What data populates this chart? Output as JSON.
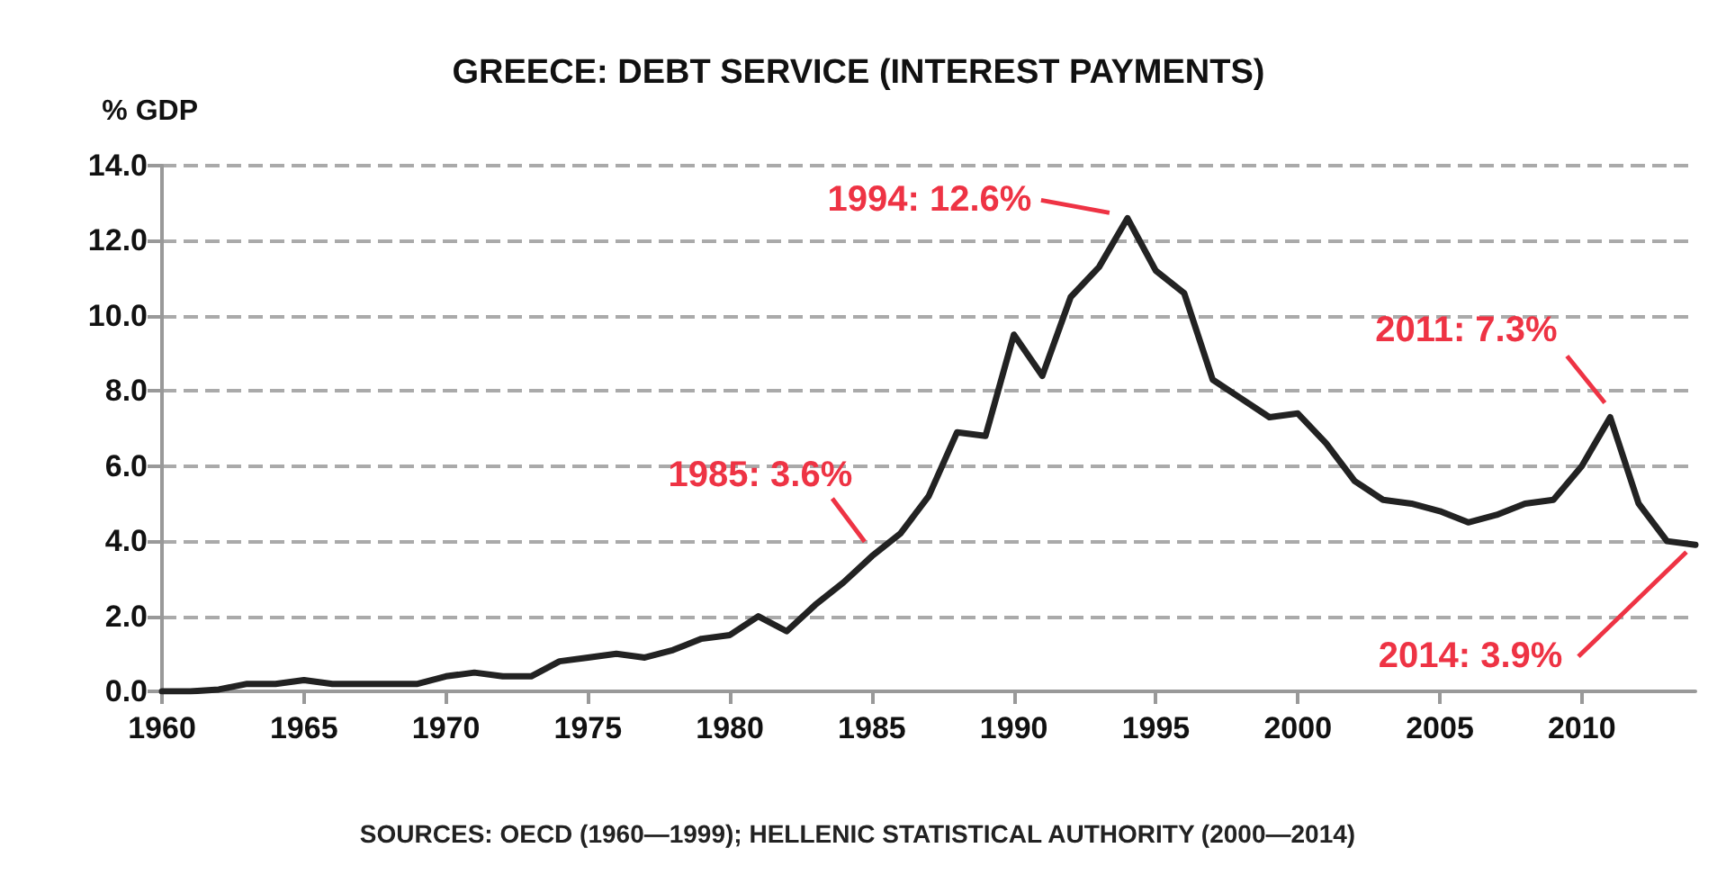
{
  "chart_data": {
    "type": "line",
    "title": "GREECE: DEBT SERVICE (INTEREST PAYMENTS)",
    "ylabel": "% GDP",
    "x": [
      1960,
      1961,
      1962,
      1963,
      1964,
      1965,
      1966,
      1967,
      1968,
      1969,
      1970,
      1971,
      1972,
      1973,
      1974,
      1975,
      1976,
      1977,
      1978,
      1979,
      1980,
      1981,
      1982,
      1983,
      1984,
      1985,
      1986,
      1987,
      1988,
      1989,
      1990,
      1991,
      1992,
      1993,
      1994,
      1995,
      1996,
      1997,
      1998,
      1999,
      2000,
      2001,
      2002,
      2003,
      2004,
      2005,
      2006,
      2007,
      2008,
      2009,
      2010,
      2011,
      2012,
      2013,
      2014
    ],
    "series": [
      {
        "color": "#222222",
        "values": [
          0,
          0,
          0.05,
          0.2,
          0.2,
          0.3,
          0.2,
          0.2,
          0.2,
          0.2,
          0.4,
          0.5,
          0.4,
          0.4,
          0.8,
          0.9,
          1.0,
          0.9,
          1.1,
          1.4,
          1.5,
          2.0,
          1.6,
          2.3,
          2.9,
          3.6,
          4.2,
          5.2,
          6.9,
          6.8,
          9.5,
          8.4,
          10.5,
          11.3,
          12.6,
          11.2,
          10.6,
          8.3,
          7.8,
          7.3,
          7.4,
          6.6,
          5.6,
          5.1,
          5.0,
          4.8,
          4.5,
          4.7,
          5.0,
          5.1,
          6.0,
          7.3,
          5.0,
          4.0,
          3.9
        ]
      }
    ],
    "xlim": [
      1960,
      2014
    ],
    "xticks": [
      1960,
      1965,
      1970,
      1975,
      1980,
      1985,
      1990,
      1995,
      2000,
      2005,
      2010
    ],
    "ylim": [
      0,
      14
    ],
    "yticks": [
      {
        "value": 0,
        "label": "0.0"
      },
      {
        "value": 2,
        "label": "2.0"
      },
      {
        "value": 4,
        "label": "4.0"
      },
      {
        "value": 6,
        "label": "6.0"
      },
      {
        "value": 8,
        "label": "8.0"
      },
      {
        "value": 10,
        "label": "10.0"
      },
      {
        "value": 12,
        "label": "12.0"
      },
      {
        "value": 14,
        "label": "14.0"
      }
    ],
    "grid": "y",
    "marker": "none",
    "line_style": "solid",
    "annotations": [
      {
        "text": "1985: 3.6%",
        "x": 1985,
        "y": 3.6
      },
      {
        "text": "1994: 12.6%",
        "x": 1994,
        "y": 12.6
      },
      {
        "text": "2011: 7.3%",
        "x": 2011,
        "y": 7.3
      },
      {
        "text": "2014: 3.9%",
        "x": 2014,
        "y": 3.9
      },
      "SOURCES: OECD (1960—1999); HELLENIC STATISTICAL AUTHORITY (2000—2014)"
    ]
  }
}
